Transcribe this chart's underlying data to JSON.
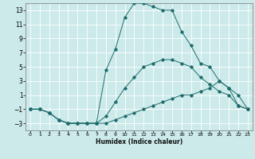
{
  "xlabel": "Humidex (Indice chaleur)",
  "ylabel": "",
  "bg_color": "#cceaea",
  "grid_color": "#ffffff",
  "line_color": "#1e6b6b",
  "xlim": [
    -0.5,
    23.5
  ],
  "ylim": [
    -4,
    14
  ],
  "xticks": [
    0,
    1,
    2,
    3,
    4,
    5,
    6,
    7,
    8,
    9,
    10,
    11,
    12,
    13,
    14,
    15,
    16,
    17,
    18,
    19,
    20,
    21,
    22,
    23
  ],
  "yticks": [
    -3,
    -1,
    1,
    3,
    5,
    7,
    9,
    11,
    13
  ],
  "series1_x": [
    0,
    1,
    2,
    3,
    4,
    5,
    6,
    7,
    8,
    9,
    10,
    11,
    12,
    13,
    14,
    15,
    16,
    17,
    18,
    19,
    20,
    21,
    22,
    23
  ],
  "series1_y": [
    -1,
    -1,
    -1.5,
    -2.5,
    -3,
    -3,
    -3,
    -3,
    -3,
    -2.5,
    -2,
    -1.5,
    -1,
    -0.5,
    0,
    0.5,
    1,
    1,
    1.5,
    2,
    3,
    2,
    1,
    -1
  ],
  "series2_x": [
    0,
    1,
    2,
    3,
    4,
    5,
    6,
    7,
    8,
    9,
    10,
    11,
    12,
    13,
    14,
    15,
    16,
    17,
    18,
    19,
    20,
    21,
    22,
    23
  ],
  "series2_y": [
    -1,
    -1,
    -1.5,
    -2.5,
    -3,
    -3,
    -3,
    -3,
    -2,
    0,
    2,
    3.5,
    5,
    5.5,
    6,
    6,
    5.5,
    5,
    3.5,
    2.5,
    1.5,
    1,
    -0.5,
    -1
  ],
  "series3_x": [
    0,
    1,
    2,
    3,
    4,
    5,
    6,
    7,
    8,
    9,
    10,
    11,
    12,
    13,
    14,
    15,
    16,
    17,
    18,
    19,
    20,
    21,
    22,
    23
  ],
  "series3_y": [
    -1,
    -1,
    -1.5,
    -2.5,
    -3,
    -3,
    -3,
    -3,
    4.5,
    7.5,
    12,
    14,
    14,
    13.5,
    13,
    13,
    10,
    8,
    5.5,
    5,
    3,
    2,
    -0.5,
    -1
  ],
  "figw": 3.2,
  "figh": 2.0,
  "dpi": 100
}
